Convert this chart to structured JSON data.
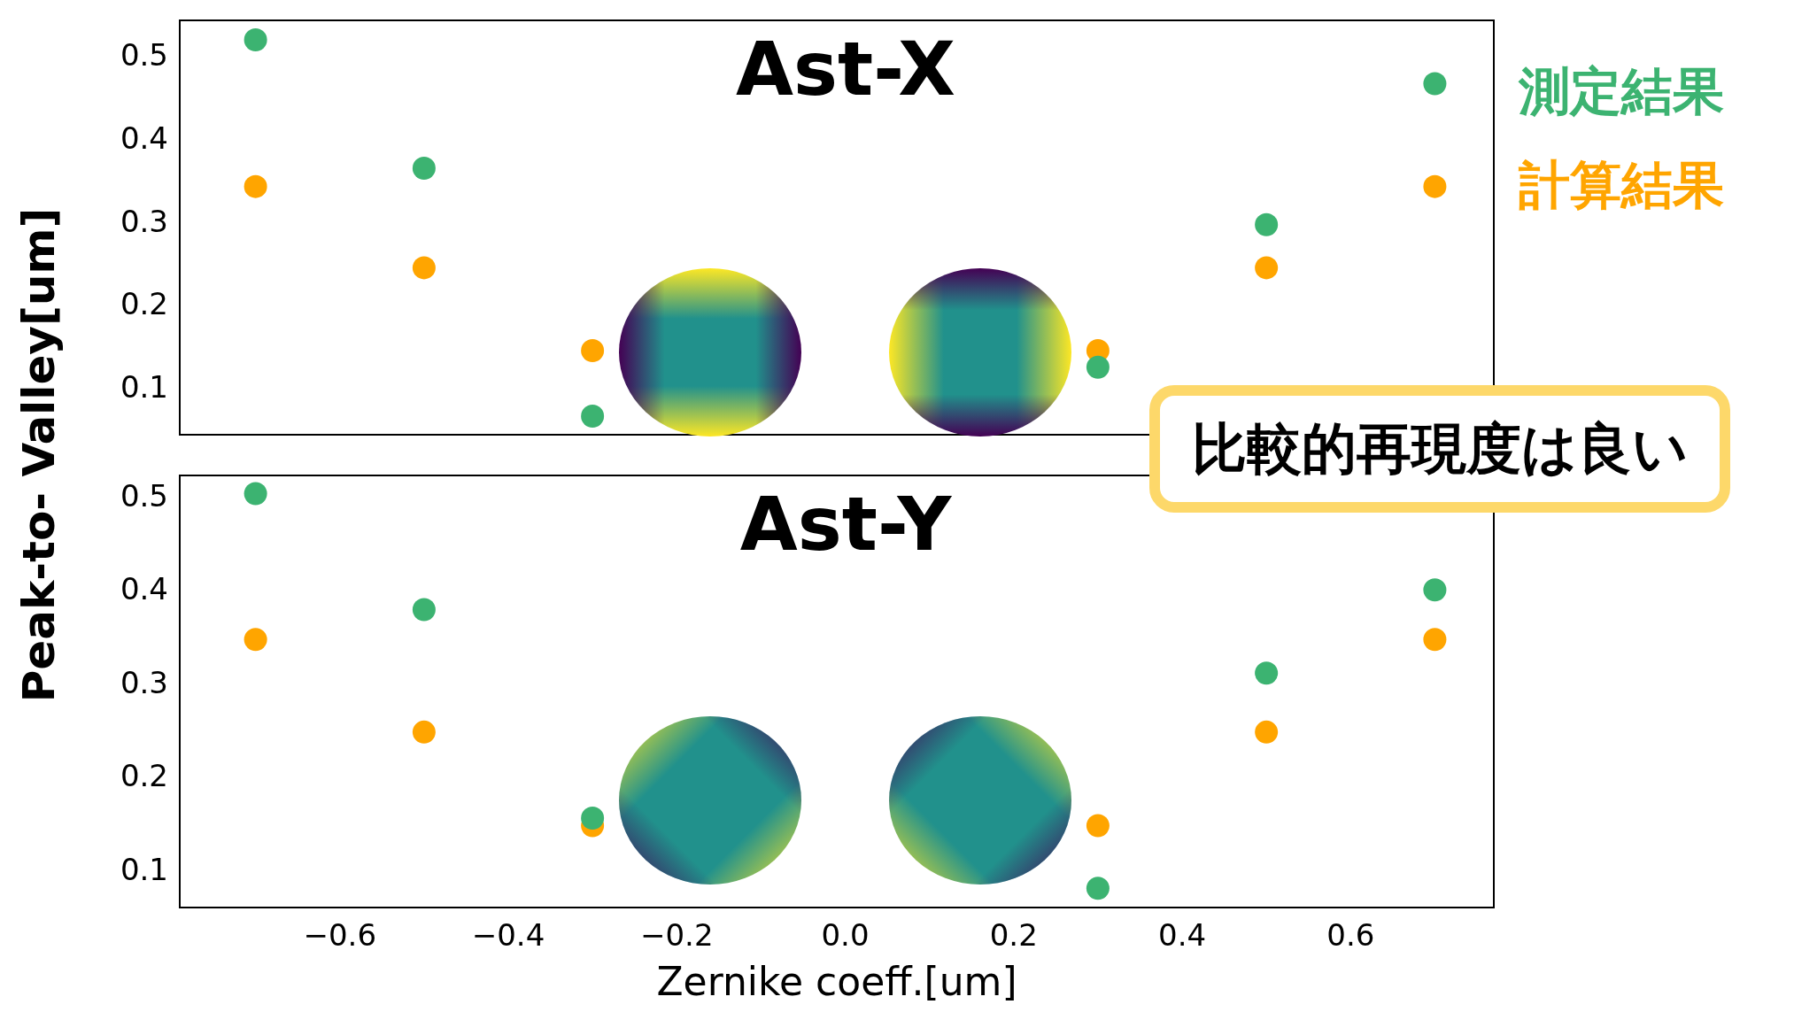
{
  "chart_data": [
    {
      "type": "scatter",
      "title": "Ast-X",
      "ylabel": "Peak-to- Valley[um]",
      "x": [
        -0.7,
        -0.5,
        -0.3,
        0.3,
        0.5,
        0.7
      ],
      "marker": "circle",
      "legend": "top right",
      "tick_labels": "y",
      "annotations": [
        "比較的再現度は良い"
      ],
      "xlim": [
        -0.79,
        0.77
      ],
      "ylim": [
        0.046,
        0.545
      ],
      "yticks": [
        0.1,
        0.2,
        0.3,
        0.4,
        0.5
      ],
      "series": [
        {
          "name": "測定結果",
          "color": "#3cb371",
          "values": [
            0.522,
            0.367,
            0.068,
            0.127,
            0.299,
            0.469
          ]
        },
        {
          "name": "計算結果",
          "color": "#ffa500",
          "values": [
            0.345,
            0.247,
            0.147,
            0.147,
            0.247,
            0.345
          ]
        }
      ]
    },
    {
      "type": "scatter",
      "title": "Ast-Y",
      "xlabel": "Zernike coeff.[um]",
      "x": [
        -0.7,
        -0.5,
        -0.3,
        0.3,
        0.5,
        0.7
      ],
      "marker": "circle",
      "xlim": [
        -0.79,
        0.77
      ],
      "ylim": [
        0.062,
        0.524
      ],
      "yticks": [
        0.1,
        0.2,
        0.3,
        0.4,
        0.5
      ],
      "xticks": [
        {
          "value": -0.6,
          "label": "−0.6"
        },
        {
          "value": -0.4,
          "label": "−0.4"
        },
        {
          "value": -0.2,
          "label": "−0.2"
        },
        {
          "value": 0,
          "label": "0.0"
        },
        0.2,
        0.4,
        0.6
      ],
      "series": [
        {
          "color": "#3cb371",
          "values": [
            0.505,
            0.381,
            0.158,
            0.083,
            0.313,
            0.402
          ]
        },
        {
          "color": "#ffa500",
          "values": [
            0.349,
            0.25,
            0.15,
            0.15,
            0.25,
            0.349
          ]
        }
      ]
    }
  ]
}
